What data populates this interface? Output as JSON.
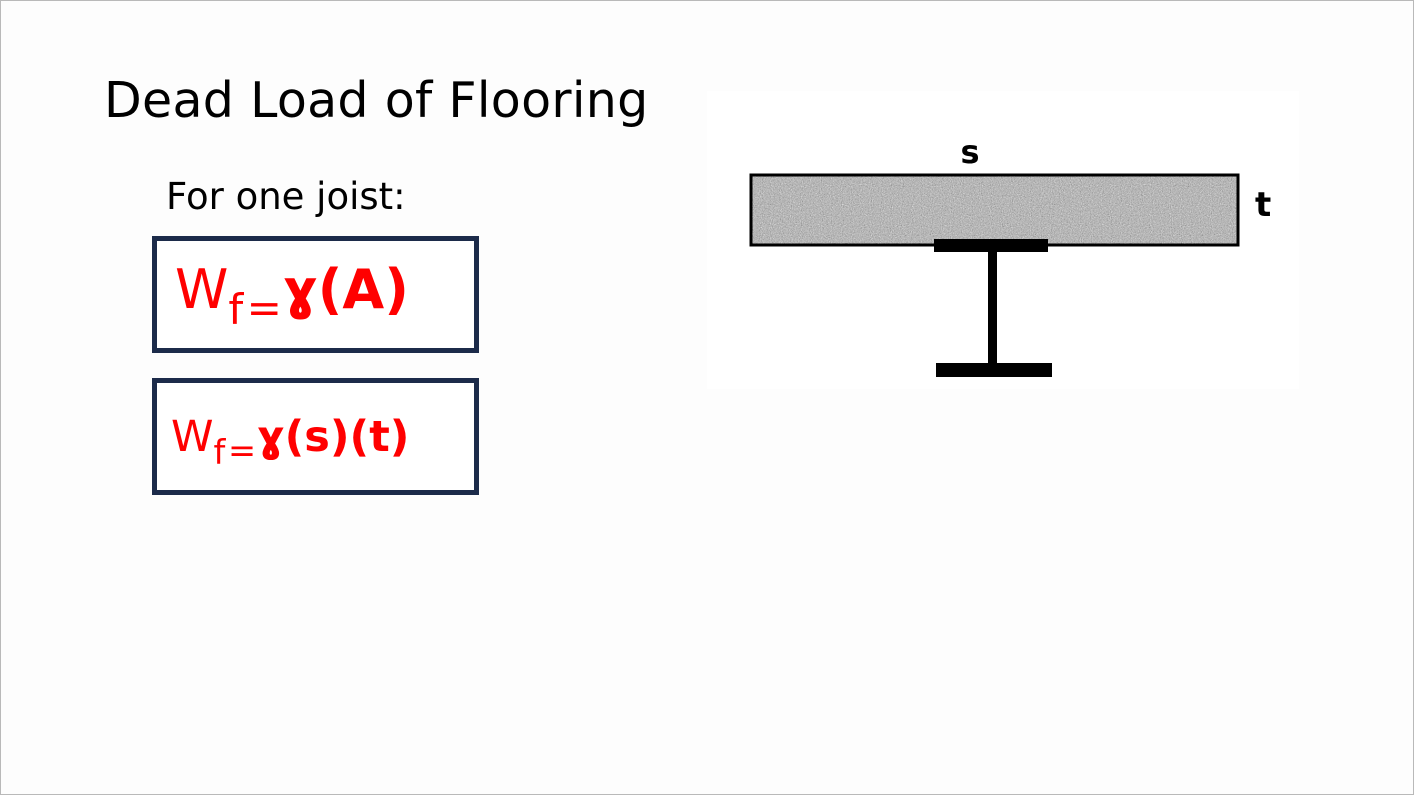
{
  "slide": {
    "title": "Dead Load of Flooring",
    "subheading": "For one joist:"
  },
  "formulas": [
    {
      "lhs": "W",
      "subscript": "f",
      "equals": "=",
      "rhs": "ɣ(A)"
    },
    {
      "lhs": "W",
      "subscript": "f",
      "equals": "=",
      "rhs": "ɣ(s)(t)"
    }
  ],
  "diagram": {
    "label_width": "s",
    "label_thickness": "t"
  },
  "colors": {
    "formula_text": "#ff0000",
    "box_border": "#1c2b4a",
    "slab_fill": "#a8a8a8",
    "beam": "#000000"
  }
}
